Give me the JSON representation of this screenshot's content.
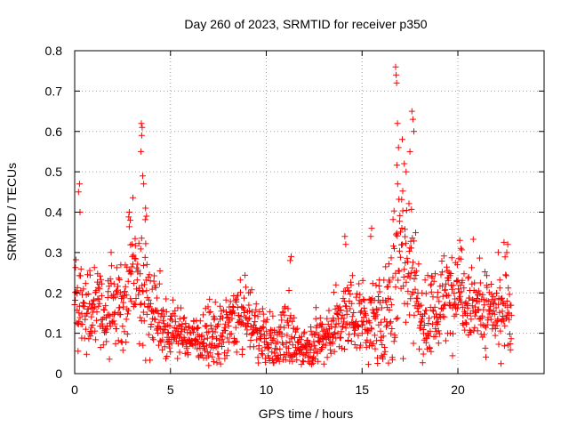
{
  "chart_data": {
    "type": "scatter",
    "title": "Day 260 of 2023, SRMTID for receiver p350",
    "xlabel": "GPS time / hours",
    "ylabel": "SRMTID / TECUs",
    "xlim": [
      0,
      24.5
    ],
    "ylim": [
      0,
      0.8
    ],
    "x_ticks": [
      0,
      5,
      10,
      15,
      20
    ],
    "x_tick_labels": [
      "0",
      "5",
      "10",
      "15",
      "20"
    ],
    "y_ticks": [
      0,
      0.1,
      0.2,
      0.3,
      0.4,
      0.5,
      0.6,
      0.7,
      0.8
    ],
    "y_tick_labels": [
      "0",
      "0.1",
      "0.2",
      "0.3",
      "0.4",
      "0.5",
      "0.6",
      "0.7",
      "0.8"
    ],
    "grid": true,
    "marker": "+",
    "marker_color": "#ff0000",
    "x_range_of_data": [
      0.0,
      22.8
    ],
    "profile": [
      [
        0.0,
        0.13
      ],
      [
        0.3,
        0.19
      ],
      [
        0.6,
        0.15
      ],
      [
        1.0,
        0.17
      ],
      [
        1.5,
        0.15
      ],
      [
        2.0,
        0.16
      ],
      [
        2.5,
        0.17
      ],
      [
        2.8,
        0.25
      ],
      [
        3.1,
        0.28
      ],
      [
        3.5,
        0.26
      ],
      [
        3.9,
        0.18
      ],
      [
        4.3,
        0.13
      ],
      [
        5.0,
        0.11
      ],
      [
        6.0,
        0.09
      ],
      [
        7.0,
        0.09
      ],
      [
        7.5,
        0.08
      ],
      [
        8.2,
        0.13
      ],
      [
        9.0,
        0.14
      ],
      [
        10.0,
        0.08
      ],
      [
        10.6,
        0.07
      ],
      [
        11.0,
        0.12
      ],
      [
        11.5,
        0.06
      ],
      [
        12.0,
        0.07
      ],
      [
        13.0,
        0.09
      ],
      [
        14.0,
        0.13
      ],
      [
        14.5,
        0.15
      ],
      [
        15.0,
        0.14
      ],
      [
        15.5,
        0.12
      ],
      [
        16.0,
        0.13
      ],
      [
        16.5,
        0.17
      ],
      [
        17.0,
        0.33
      ],
      [
        17.6,
        0.28
      ],
      [
        18.0,
        0.15
      ],
      [
        18.5,
        0.14
      ],
      [
        19.0,
        0.16
      ],
      [
        19.5,
        0.19
      ],
      [
        20.0,
        0.22
      ],
      [
        20.5,
        0.19
      ],
      [
        21.0,
        0.17
      ],
      [
        21.5,
        0.15
      ],
      [
        22.0,
        0.14
      ],
      [
        22.5,
        0.16
      ],
      [
        22.8,
        0.12
      ]
    ],
    "spread_profile": [
      [
        0.0,
        0.06
      ],
      [
        2.0,
        0.06
      ],
      [
        3.0,
        0.09
      ],
      [
        3.5,
        0.1
      ],
      [
        4.5,
        0.05
      ],
      [
        6.0,
        0.03
      ],
      [
        8.0,
        0.05
      ],
      [
        10.0,
        0.04
      ],
      [
        11.0,
        0.05
      ],
      [
        12.0,
        0.03
      ],
      [
        14.0,
        0.05
      ],
      [
        16.0,
        0.06
      ],
      [
        17.0,
        0.15
      ],
      [
        18.0,
        0.07
      ],
      [
        20.0,
        0.06
      ],
      [
        22.8,
        0.06
      ]
    ],
    "extreme_points": [
      {
        "x": 16.75,
        "y": 0.76
      },
      {
        "x": 16.78,
        "y": 0.74
      },
      {
        "x": 16.8,
        "y": 0.72
      },
      {
        "x": 17.6,
        "y": 0.65
      },
      {
        "x": 17.65,
        "y": 0.63
      },
      {
        "x": 17.7,
        "y": 0.6
      },
      {
        "x": 3.48,
        "y": 0.62
      },
      {
        "x": 3.52,
        "y": 0.61
      },
      {
        "x": 3.5,
        "y": 0.59
      },
      {
        "x": 3.46,
        "y": 0.55
      },
      {
        "x": 16.85,
        "y": 0.62
      },
      {
        "x": 16.9,
        "y": 0.56
      },
      {
        "x": 17.3,
        "y": 0.5
      },
      {
        "x": 17.5,
        "y": 0.55
      },
      {
        "x": 3.55,
        "y": 0.49
      },
      {
        "x": 3.6,
        "y": 0.47
      },
      {
        "x": 0.25,
        "y": 0.47
      },
      {
        "x": 0.2,
        "y": 0.45
      },
      {
        "x": 0.28,
        "y": 0.4
      },
      {
        "x": 2.85,
        "y": 0.4
      },
      {
        "x": 2.9,
        "y": 0.38
      },
      {
        "x": 3.7,
        "y": 0.41
      },
      {
        "x": 3.75,
        "y": 0.39
      },
      {
        "x": 15.5,
        "y": 0.36
      },
      {
        "x": 15.45,
        "y": 0.34
      },
      {
        "x": 14.1,
        "y": 0.34
      },
      {
        "x": 14.15,
        "y": 0.32
      },
      {
        "x": 20.1,
        "y": 0.33
      },
      {
        "x": 20.15,
        "y": 0.31
      },
      {
        "x": 22.6,
        "y": 0.32
      },
      {
        "x": 22.55,
        "y": 0.3
      },
      {
        "x": 11.3,
        "y": 0.29
      },
      {
        "x": 11.25,
        "y": 0.28
      },
      {
        "x": 17.1,
        "y": 0.58
      },
      {
        "x": 17.2,
        "y": 0.52
      }
    ]
  }
}
